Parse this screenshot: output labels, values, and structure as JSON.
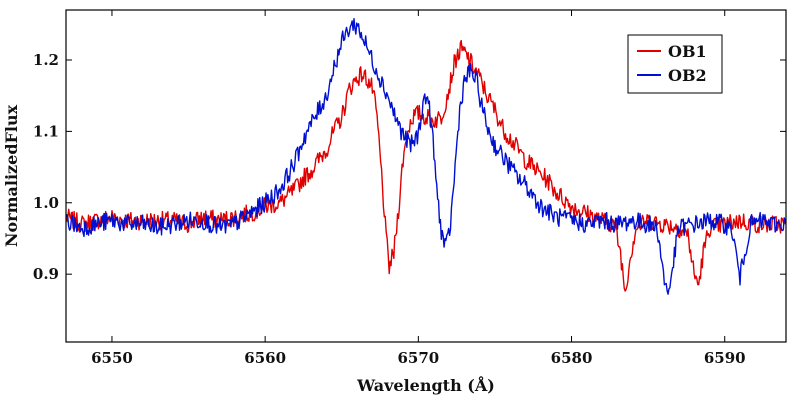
{
  "chart_data": {
    "type": "line",
    "title": "",
    "xlabel": "Wavelength (Å)",
    "ylabel": "NormalizedFlux",
    "xlim": [
      6547,
      6594
    ],
    "ylim": [
      0.805,
      1.27
    ],
    "xticks": [
      6550,
      6560,
      6570,
      6580,
      6590
    ],
    "yticks": [
      0.9,
      1.0,
      1.1,
      1.2
    ],
    "grid": false,
    "legend_position": "top-right",
    "series": [
      {
        "name": "OB1",
        "color": "#e00000",
        "points": [
          [
            6547.0,
            0.98
          ],
          [
            6548.0,
            0.97
          ],
          [
            6549.0,
            0.975
          ],
          [
            6550.0,
            0.98
          ],
          [
            6551.0,
            0.975
          ],
          [
            6552.0,
            0.975
          ],
          [
            6553.0,
            0.975
          ],
          [
            6554.0,
            0.975
          ],
          [
            6555.0,
            0.97
          ],
          [
            6556.0,
            0.98
          ],
          [
            6557.0,
            0.975
          ],
          [
            6558.0,
            0.98
          ],
          [
            6559.0,
            0.985
          ],
          [
            6560.0,
            0.995
          ],
          [
            6561.0,
            1.0
          ],
          [
            6562.0,
            1.02
          ],
          [
            6562.5,
            1.035
          ],
          [
            6563.0,
            1.045
          ],
          [
            6563.5,
            1.06
          ],
          [
            6564.0,
            1.075
          ],
          [
            6564.5,
            1.1
          ],
          [
            6565.0,
            1.12
          ],
          [
            6565.5,
            1.16
          ],
          [
            6566.0,
            1.175
          ],
          [
            6566.3,
            1.18
          ],
          [
            6566.6,
            1.175
          ],
          [
            6567.0,
            1.16
          ],
          [
            6567.3,
            1.12
          ],
          [
            6567.6,
            1.04
          ],
          [
            6567.9,
            0.95
          ],
          [
            6568.1,
            0.91
          ],
          [
            6568.4,
            0.93
          ],
          [
            6568.7,
            0.99
          ],
          [
            6569.0,
            1.06
          ],
          [
            6569.3,
            1.1
          ],
          [
            6569.6,
            1.12
          ],
          [
            6570.0,
            1.125
          ],
          [
            6570.5,
            1.12
          ],
          [
            6571.0,
            1.115
          ],
          [
            6571.5,
            1.12
          ],
          [
            6572.0,
            1.16
          ],
          [
            6572.4,
            1.2
          ],
          [
            6572.8,
            1.215
          ],
          [
            6573.2,
            1.205
          ],
          [
            6573.6,
            1.19
          ],
          [
            6574.0,
            1.175
          ],
          [
            6574.5,
            1.15
          ],
          [
            6575.0,
            1.13
          ],
          [
            6575.5,
            1.105
          ],
          [
            6576.0,
            1.09
          ],
          [
            6576.5,
            1.075
          ],
          [
            6577.0,
            1.06
          ],
          [
            6577.5,
            1.05
          ],
          [
            6578.0,
            1.04
          ],
          [
            6578.5,
            1.03
          ],
          [
            6579.0,
            1.015
          ],
          [
            6579.5,
            1.005
          ],
          [
            6580.0,
            0.995
          ],
          [
            6581.0,
            0.985
          ],
          [
            6582.0,
            0.975
          ],
          [
            6582.8,
            0.97
          ],
          [
            6583.2,
            0.93
          ],
          [
            6583.5,
            0.875
          ],
          [
            6583.8,
            0.92
          ],
          [
            6584.2,
            0.965
          ],
          [
            6585.0,
            0.975
          ],
          [
            6586.0,
            0.97
          ],
          [
            6587.0,
            0.965
          ],
          [
            6587.6,
            0.955
          ],
          [
            6588.0,
            0.9
          ],
          [
            6588.3,
            0.885
          ],
          [
            6588.6,
            0.93
          ],
          [
            6589.0,
            0.965
          ],
          [
            6590.0,
            0.97
          ],
          [
            6591.0,
            0.975
          ],
          [
            6592.0,
            0.97
          ],
          [
            6593.0,
            0.97
          ],
          [
            6594.0,
            0.97
          ]
        ]
      },
      {
        "name": "OB2",
        "color": "#0010d0",
        "points": [
          [
            6547.0,
            0.975
          ],
          [
            6548.0,
            0.965
          ],
          [
            6549.0,
            0.97
          ],
          [
            6550.0,
            0.975
          ],
          [
            6551.0,
            0.97
          ],
          [
            6552.0,
            0.97
          ],
          [
            6553.0,
            0.965
          ],
          [
            6554.0,
            0.97
          ],
          [
            6555.0,
            0.975
          ],
          [
            6556.0,
            0.975
          ],
          [
            6557.0,
            0.965
          ],
          [
            6558.0,
            0.97
          ],
          [
            6559.0,
            0.985
          ],
          [
            6560.0,
            1.0
          ],
          [
            6561.0,
            1.02
          ],
          [
            6562.0,
            1.06
          ],
          [
            6562.5,
            1.09
          ],
          [
            6563.0,
            1.11
          ],
          [
            6563.5,
            1.13
          ],
          [
            6564.0,
            1.15
          ],
          [
            6564.5,
            1.19
          ],
          [
            6565.0,
            1.225
          ],
          [
            6565.5,
            1.245
          ],
          [
            6565.8,
            1.25
          ],
          [
            6566.1,
            1.245
          ],
          [
            6566.5,
            1.225
          ],
          [
            6567.0,
            1.2
          ],
          [
            6567.5,
            1.175
          ],
          [
            6568.0,
            1.15
          ],
          [
            6568.5,
            1.12
          ],
          [
            6569.0,
            1.095
          ],
          [
            6569.5,
            1.08
          ],
          [
            6570.0,
            1.095
          ],
          [
            6570.3,
            1.14
          ],
          [
            6570.6,
            1.15
          ],
          [
            6570.9,
            1.1
          ],
          [
            6571.2,
            1.02
          ],
          [
            6571.5,
            0.96
          ],
          [
            6571.8,
            0.935
          ],
          [
            6572.1,
            0.97
          ],
          [
            6572.4,
            1.05
          ],
          [
            6572.7,
            1.13
          ],
          [
            6573.0,
            1.17
          ],
          [
            6573.4,
            1.185
          ],
          [
            6573.8,
            1.17
          ],
          [
            6574.2,
            1.13
          ],
          [
            6574.6,
            1.1
          ],
          [
            6575.0,
            1.08
          ],
          [
            6575.5,
            1.065
          ],
          [
            6576.0,
            1.05
          ],
          [
            6576.5,
            1.035
          ],
          [
            6577.0,
            1.025
          ],
          [
            6577.5,
            1.01
          ],
          [
            6578.0,
            0.995
          ],
          [
            6579.0,
            0.98
          ],
          [
            6580.0,
            0.975
          ],
          [
            6581.0,
            0.97
          ],
          [
            6582.0,
            0.975
          ],
          [
            6583.0,
            0.97
          ],
          [
            6584.0,
            0.975
          ],
          [
            6585.0,
            0.97
          ],
          [
            6585.6,
            0.965
          ],
          [
            6586.0,
            0.9
          ],
          [
            6586.3,
            0.87
          ],
          [
            6586.6,
            0.91
          ],
          [
            6587.0,
            0.965
          ],
          [
            6588.0,
            0.97
          ],
          [
            6589.0,
            0.975
          ],
          [
            6590.0,
            0.97
          ],
          [
            6590.5,
            0.96
          ],
          [
            6590.8,
            0.92
          ],
          [
            6591.0,
            0.895
          ],
          [
            6591.3,
            0.93
          ],
          [
            6591.7,
            0.97
          ],
          [
            6592.5,
            0.975
          ],
          [
            6593.0,
            0.97
          ],
          [
            6594.0,
            0.97
          ]
        ]
      }
    ]
  }
}
